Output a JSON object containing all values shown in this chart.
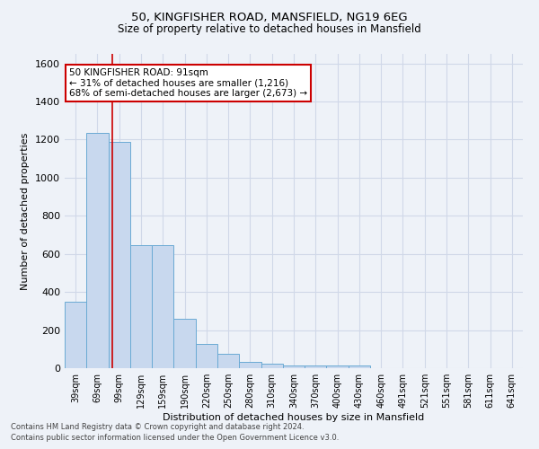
{
  "title_line1": "50, KINGFISHER ROAD, MANSFIELD, NG19 6EG",
  "title_line2": "Size of property relative to detached houses in Mansfield",
  "xlabel": "Distribution of detached houses by size in Mansfield",
  "ylabel": "Number of detached properties",
  "annotation_title": "50 KINGFISHER ROAD: 91sqm",
  "annotation_line2": "← 31% of detached houses are smaller (1,216)",
  "annotation_line3": "68% of semi-detached houses are larger (2,673) →",
  "footer_line1": "Contains HM Land Registry data © Crown copyright and database right 2024.",
  "footer_line2": "Contains public sector information licensed under the Open Government Licence v3.0.",
  "bar_color": "#c8d8ee",
  "bar_edge_color": "#6aaad4",
  "grid_color": "#d0d8e8",
  "annotation_box_color": "#ffffff",
  "annotation_box_edge": "#cc0000",
  "redline_color": "#cc0000",
  "background_color": "#eef2f8",
  "categories": [
    "39sqm",
    "69sqm",
    "99sqm",
    "129sqm",
    "159sqm",
    "190sqm",
    "220sqm",
    "250sqm",
    "280sqm",
    "310sqm",
    "340sqm",
    "370sqm",
    "400sqm",
    "430sqm",
    "460sqm",
    "491sqm",
    "521sqm",
    "551sqm",
    "581sqm",
    "611sqm",
    "641sqm"
  ],
  "values": [
    350,
    1235,
    1190,
    645,
    645,
    260,
    125,
    75,
    35,
    22,
    15,
    15,
    15,
    15,
    0,
    0,
    0,
    0,
    0,
    0,
    0
  ],
  "ylim": [
    0,
    1650
  ],
  "yticks": [
    0,
    200,
    400,
    600,
    800,
    1000,
    1200,
    1400,
    1600
  ],
  "redline_x": 1.67,
  "figwidth": 6.0,
  "figheight": 5.0,
  "dpi": 100
}
